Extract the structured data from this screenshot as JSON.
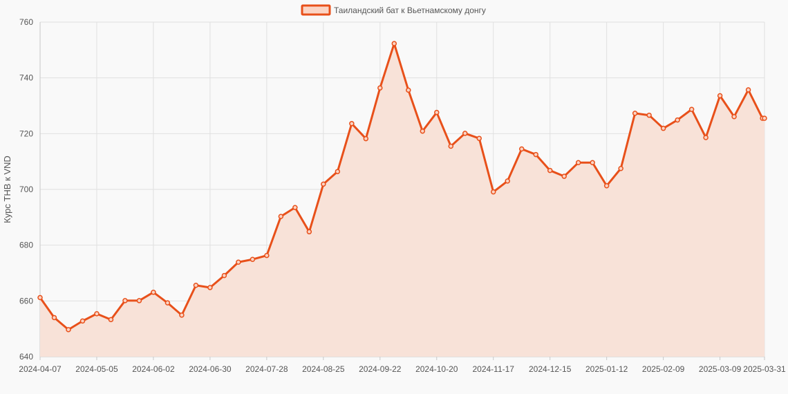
{
  "chart_data": {
    "type": "line",
    "title": "",
    "xlabel": "",
    "ylabel": "Курс THB к VND",
    "ylim": [
      640,
      760
    ],
    "y_ticks": [
      640,
      660,
      680,
      700,
      720,
      740,
      760
    ],
    "x_tick_labels": [
      "2024-04-07",
      "2024-05-05",
      "2024-06-02",
      "2024-06-30",
      "2024-07-28",
      "2024-08-25",
      "2024-09-22",
      "2024-10-20",
      "2024-11-17",
      "2024-12-15",
      "2025-01-12",
      "2025-02-09",
      "2025-03-09",
      "2025-03-31"
    ],
    "grid": true,
    "legend_position": "top-center",
    "colors": {
      "line": "#e8501a",
      "fill": "#f8e2d8",
      "grid": "#e0e0e0",
      "legend_fill": "#fbd4c4"
    },
    "x": [
      "2024-04-07",
      "2024-04-14",
      "2024-04-21",
      "2024-04-28",
      "2024-05-05",
      "2024-05-12",
      "2024-05-19",
      "2024-05-26",
      "2024-06-02",
      "2024-06-09",
      "2024-06-16",
      "2024-06-23",
      "2024-06-30",
      "2024-07-07",
      "2024-07-14",
      "2024-07-21",
      "2024-07-28",
      "2024-08-04",
      "2024-08-11",
      "2024-08-18",
      "2024-08-25",
      "2024-09-01",
      "2024-09-08",
      "2024-09-15",
      "2024-09-22",
      "2024-09-29",
      "2024-10-06",
      "2024-10-13",
      "2024-10-20",
      "2024-10-27",
      "2024-11-03",
      "2024-11-10",
      "2024-11-17",
      "2024-11-24",
      "2024-12-01",
      "2024-12-08",
      "2024-12-15",
      "2024-12-22",
      "2024-12-29",
      "2025-01-05",
      "2025-01-12",
      "2025-01-19",
      "2025-01-26",
      "2025-02-02",
      "2025-02-09",
      "2025-02-16",
      "2025-02-23",
      "2025-03-02",
      "2025-03-09",
      "2025-03-16",
      "2025-03-23",
      "2025-03-30",
      "2025-03-31"
    ],
    "series": [
      {
        "name": "Таиландский бат к Вьетнамскому донгу",
        "values": [
          661.2,
          654.0,
          649.7,
          652.8,
          655.4,
          653.3,
          660.1,
          660.1,
          663.1,
          659.3,
          654.9,
          665.6,
          664.8,
          669.1,
          673.9,
          674.9,
          676.3,
          690.3,
          693.5,
          684.8,
          701.9,
          706.4,
          723.6,
          718.2,
          736.4,
          752.3,
          735.6,
          720.9,
          727.6,
          715.5,
          720.1,
          718.3,
          699.1,
          703.0,
          714.5,
          712.5,
          706.8,
          704.7,
          709.6,
          709.6,
          701.3,
          707.5,
          727.3,
          726.6,
          721.9,
          724.9,
          728.7,
          718.6,
          733.6,
          726.1,
          735.7,
          725.5,
          725.5
        ]
      }
    ]
  }
}
